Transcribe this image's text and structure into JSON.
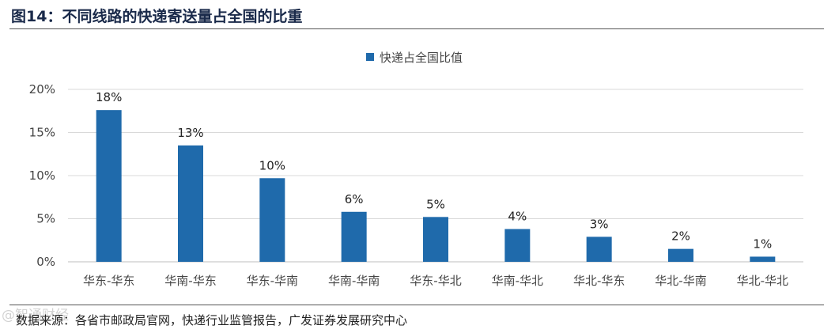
{
  "header": {
    "title": "图14：不同线路的快递寄送量占全国的比重"
  },
  "footer": {
    "source": "数据来源：各省市邮政局官网，快递行业监管报告，广发证券发展研究中心",
    "watermark": "@智通财经"
  },
  "colors": {
    "bar": "#1f6aab",
    "grid": "#d9d9d9",
    "axis": "#bfbfbf"
  },
  "chart_data": {
    "type": "bar",
    "categories": [
      "华东-华东",
      "华南-华东",
      "华东-华南",
      "华南-华南",
      "华东-华北",
      "华南-华北",
      "华北-华东",
      "华北-华南",
      "华北-华北"
    ],
    "series": [
      {
        "name": "快递占全国比值",
        "values": [
          17.6,
          13.5,
          9.7,
          5.8,
          5.2,
          3.8,
          2.9,
          1.5,
          0.6
        ],
        "labels": [
          "18%",
          "13%",
          "10%",
          "6%",
          "5%",
          "4%",
          "3%",
          "2%",
          "1%"
        ]
      }
    ],
    "yticks": [
      "0%",
      "5%",
      "10%",
      "15%",
      "20%"
    ],
    "ylim": [
      0,
      20
    ],
    "grid": true,
    "legend": "top-center"
  }
}
